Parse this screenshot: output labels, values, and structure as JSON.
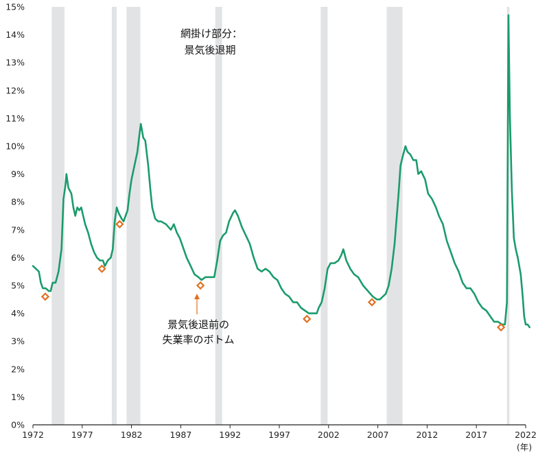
{
  "chart_data": {
    "type": "line",
    "title": "",
    "xlabel": "",
    "ylabel": "",
    "x_unit": "(年)",
    "xlim": [
      1972,
      2022
    ],
    "ylim": [
      0,
      15
    ],
    "x_ticks": [
      1972,
      1977,
      1982,
      1987,
      1992,
      1997,
      2002,
      2007,
      2012,
      2017,
      2022
    ],
    "y_ticks": [
      "0%",
      "1%",
      "2%",
      "3%",
      "4%",
      "5%",
      "6%",
      "7%",
      "8%",
      "9%",
      "10%",
      "11%",
      "12%",
      "13%",
      "14%",
      "15%"
    ],
    "grid": false,
    "line_color": "#1a9b6c",
    "marker_color": "#e07020",
    "shading_color": "#e2e3e5",
    "recessions": [
      [
        1973.9,
        1975.2
      ],
      [
        1980.0,
        1980.5
      ],
      [
        1981.5,
        1982.9
      ],
      [
        1990.5,
        1991.2
      ],
      [
        2001.2,
        2001.9
      ],
      [
        2007.9,
        2009.5
      ],
      [
        2020.1,
        2020.35
      ]
    ],
    "series": [
      {
        "values": [
          [
            1972.0,
            5.7
          ],
          [
            1972.3,
            5.6
          ],
          [
            1972.6,
            5.5
          ],
          [
            1972.8,
            5.1
          ],
          [
            1973.0,
            4.9
          ],
          [
            1973.3,
            4.9
          ],
          [
            1973.6,
            4.8
          ],
          [
            1973.8,
            4.8
          ],
          [
            1974.0,
            5.1
          ],
          [
            1974.3,
            5.1
          ],
          [
            1974.6,
            5.5
          ],
          [
            1974.9,
            6.3
          ],
          [
            1975.1,
            8.1
          ],
          [
            1975.3,
            8.6
          ],
          [
            1975.4,
            9.0
          ],
          [
            1975.6,
            8.5
          ],
          [
            1975.9,
            8.3
          ],
          [
            1976.1,
            7.8
          ],
          [
            1976.3,
            7.5
          ],
          [
            1976.5,
            7.8
          ],
          [
            1976.7,
            7.7
          ],
          [
            1976.9,
            7.8
          ],
          [
            1977.1,
            7.5
          ],
          [
            1977.3,
            7.2
          ],
          [
            1977.6,
            6.9
          ],
          [
            1977.9,
            6.5
          ],
          [
            1978.2,
            6.2
          ],
          [
            1978.5,
            6.0
          ],
          [
            1978.8,
            5.9
          ],
          [
            1979.1,
            5.9
          ],
          [
            1979.3,
            5.7
          ],
          [
            1979.6,
            5.9
          ],
          [
            1979.9,
            6.0
          ],
          [
            1980.1,
            6.3
          ],
          [
            1980.3,
            7.3
          ],
          [
            1980.5,
            7.8
          ],
          [
            1980.7,
            7.6
          ],
          [
            1981.0,
            7.4
          ],
          [
            1981.2,
            7.3
          ],
          [
            1981.4,
            7.5
          ],
          [
            1981.6,
            7.7
          ],
          [
            1981.8,
            8.3
          ],
          [
            1982.0,
            8.8
          ],
          [
            1982.3,
            9.3
          ],
          [
            1982.6,
            9.8
          ],
          [
            1982.8,
            10.4
          ],
          [
            1982.95,
            10.8
          ],
          [
            1983.2,
            10.3
          ],
          [
            1983.4,
            10.2
          ],
          [
            1983.7,
            9.3
          ],
          [
            1983.9,
            8.5
          ],
          [
            1984.1,
            7.8
          ],
          [
            1984.4,
            7.4
          ],
          [
            1984.7,
            7.3
          ],
          [
            1985.0,
            7.3
          ],
          [
            1985.5,
            7.2
          ],
          [
            1986.0,
            7.0
          ],
          [
            1986.3,
            7.2
          ],
          [
            1986.6,
            6.9
          ],
          [
            1986.9,
            6.7
          ],
          [
            1987.2,
            6.4
          ],
          [
            1987.6,
            6.0
          ],
          [
            1988.0,
            5.7
          ],
          [
            1988.4,
            5.4
          ],
          [
            1988.8,
            5.3
          ],
          [
            1989.1,
            5.2
          ],
          [
            1989.5,
            5.3
          ],
          [
            1989.8,
            5.3
          ],
          [
            1990.1,
            5.3
          ],
          [
            1990.4,
            5.3
          ],
          [
            1990.7,
            5.9
          ],
          [
            1991.0,
            6.6
          ],
          [
            1991.3,
            6.8
          ],
          [
            1991.6,
            6.9
          ],
          [
            1991.9,
            7.3
          ],
          [
            1992.3,
            7.6
          ],
          [
            1992.5,
            7.7
          ],
          [
            1992.8,
            7.5
          ],
          [
            1993.2,
            7.1
          ],
          [
            1993.6,
            6.8
          ],
          [
            1994.0,
            6.5
          ],
          [
            1994.4,
            6.0
          ],
          [
            1994.8,
            5.6
          ],
          [
            1995.2,
            5.5
          ],
          [
            1995.6,
            5.6
          ],
          [
            1996.0,
            5.5
          ],
          [
            1996.4,
            5.3
          ],
          [
            1996.8,
            5.2
          ],
          [
            1997.2,
            4.9
          ],
          [
            1997.6,
            4.7
          ],
          [
            1998.0,
            4.6
          ],
          [
            1998.4,
            4.4
          ],
          [
            1998.8,
            4.4
          ],
          [
            1999.2,
            4.2
          ],
          [
            1999.6,
            4.1
          ],
          [
            2000.0,
            4.0
          ],
          [
            2000.4,
            4.0
          ],
          [
            2000.8,
            4.0
          ],
          [
            2001.0,
            4.2
          ],
          [
            2001.3,
            4.4
          ],
          [
            2001.6,
            4.9
          ],
          [
            2001.9,
            5.6
          ],
          [
            2002.2,
            5.8
          ],
          [
            2002.6,
            5.8
          ],
          [
            2003.0,
            5.9
          ],
          [
            2003.3,
            6.1
          ],
          [
            2003.5,
            6.3
          ],
          [
            2003.8,
            5.9
          ],
          [
            2004.2,
            5.6
          ],
          [
            2004.6,
            5.4
          ],
          [
            2005.0,
            5.3
          ],
          [
            2005.5,
            5.0
          ],
          [
            2006.0,
            4.8
          ],
          [
            2006.5,
            4.6
          ],
          [
            2006.9,
            4.5
          ],
          [
            2007.2,
            4.5
          ],
          [
            2007.5,
            4.6
          ],
          [
            2007.8,
            4.7
          ],
          [
            2008.1,
            5.0
          ],
          [
            2008.4,
            5.6
          ],
          [
            2008.7,
            6.5
          ],
          [
            2008.9,
            7.4
          ],
          [
            2009.1,
            8.3
          ],
          [
            2009.3,
            9.3
          ],
          [
            2009.5,
            9.6
          ],
          [
            2009.8,
            10.0
          ],
          [
            2010.0,
            9.8
          ],
          [
            2010.3,
            9.7
          ],
          [
            2010.6,
            9.5
          ],
          [
            2010.9,
            9.5
          ],
          [
            2011.1,
            9.0
          ],
          [
            2011.4,
            9.1
          ],
          [
            2011.8,
            8.8
          ],
          [
            2012.1,
            8.3
          ],
          [
            2012.5,
            8.1
          ],
          [
            2012.9,
            7.8
          ],
          [
            2013.2,
            7.5
          ],
          [
            2013.6,
            7.2
          ],
          [
            2014.0,
            6.6
          ],
          [
            2014.4,
            6.2
          ],
          [
            2014.8,
            5.8
          ],
          [
            2015.2,
            5.5
          ],
          [
            2015.6,
            5.1
          ],
          [
            2016.0,
            4.9
          ],
          [
            2016.4,
            4.9
          ],
          [
            2016.8,
            4.7
          ],
          [
            2017.2,
            4.4
          ],
          [
            2017.6,
            4.2
          ],
          [
            2018.0,
            4.1
          ],
          [
            2018.4,
            3.9
          ],
          [
            2018.8,
            3.7
          ],
          [
            2019.2,
            3.7
          ],
          [
            2019.6,
            3.6
          ],
          [
            2019.9,
            3.6
          ],
          [
            2020.1,
            4.4
          ],
          [
            2020.25,
            14.7
          ],
          [
            2020.4,
            11.1
          ],
          [
            2020.6,
            8.4
          ],
          [
            2020.8,
            6.7
          ],
          [
            2021.0,
            6.3
          ],
          [
            2021.2,
            6.0
          ],
          [
            2021.5,
            5.4
          ],
          [
            2021.7,
            4.6
          ],
          [
            2021.85,
            3.9
          ],
          [
            2022.0,
            3.6
          ],
          [
            2022.2,
            3.6
          ],
          [
            2022.4,
            3.5
          ]
        ]
      }
    ],
    "markers": [
      [
        1973.25,
        4.6
      ],
      [
        1979.0,
        5.6
      ],
      [
        1980.8,
        7.2
      ],
      [
        1989.0,
        5.0
      ],
      [
        1999.8,
        3.8
      ],
      [
        2006.4,
        4.4
      ],
      [
        2019.5,
        3.5
      ]
    ],
    "annotations": {
      "shading_note_line1": "網掛け部分：",
      "shading_note_line2": "景気後退期",
      "bottom_note_line1": "景気後退前の",
      "bottom_note_line2": "失業率のボトム"
    }
  }
}
